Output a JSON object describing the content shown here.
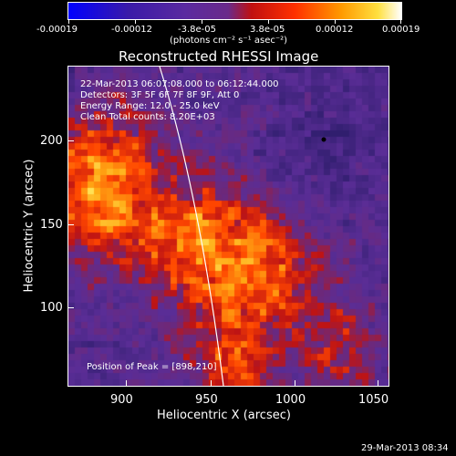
{
  "colorbar": {
    "tick_labels": [
      "-0.00019",
      "-0.00012",
      "-3.8e-05",
      "3.8e-05",
      "0.00012",
      "0.00019"
    ],
    "units": "(photons cm⁻² s⁻¹ asec⁻²)",
    "min": -0.00019,
    "max": 0.00019
  },
  "title": "Reconstructed RHESSI Image",
  "annotations": {
    "time_range": "22-Mar-2013 06:07:08.000 to 06:12:44.000",
    "detectors": "Detectors: 3F 5F 6F 7F 8F 9F, Att 0",
    "energy_range": "Energy Range: 12.0 - 25.0 keV",
    "clean_counts": "Clean     Total counts: 8.20E+03",
    "peak": "Position of Peak = [898,210]"
  },
  "axes": {
    "xlabel": "Heliocentric X (arcsec)",
    "ylabel": "Heliocentric Y (arcsec)",
    "xticks": [
      "900",
      "950",
      "1000",
      "1050"
    ],
    "yticks": [
      "200",
      "150",
      "100"
    ],
    "xlim": [
      866,
      1058
    ],
    "ylim": [
      46,
      238
    ]
  },
  "footer": {
    "timestamp": "29-Mar-2013 08:34"
  }
}
